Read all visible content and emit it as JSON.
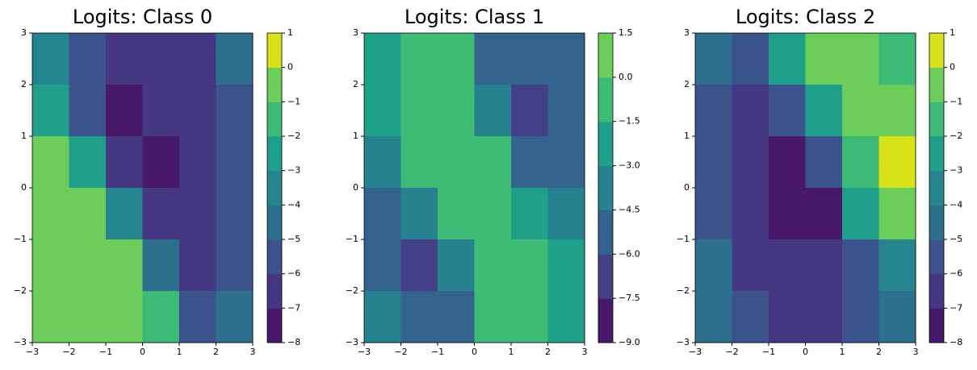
{
  "chart_data": [
    {
      "type": "contour",
      "title": "Logits: Class 0",
      "x": [
        -2.5,
        -1.5,
        -0.5,
        0.5,
        1.5,
        2.5
      ],
      "y": [
        2.5,
        1.5,
        0.5,
        -0.5,
        -1.5,
        -2.5
      ],
      "z": [
        [
          -4,
          -6,
          -6.5,
          -6.5,
          -6.5,
          -5
        ],
        [
          -3,
          -6,
          -7.5,
          -6.5,
          -6.5,
          -5.5
        ],
        [
          -0.5,
          -3,
          -6.5,
          -7.2,
          -6.5,
          -6
        ],
        [
          -0.5,
          -1,
          -4,
          -7,
          -6.5,
          -6
        ],
        [
          -1,
          -0.5,
          -1,
          -5,
          -6.5,
          -5.5
        ],
        [
          -1,
          -0.8,
          -0.5,
          -2,
          -5.5,
          -5
        ]
      ],
      "xlim": [
        -3,
        3
      ],
      "ylim": [
        -3,
        3
      ],
      "xticks": [
        {
          "value": -3,
          "label": "−3"
        },
        {
          "value": -2,
          "label": "−2"
        },
        {
          "value": -1,
          "label": "−1"
        },
        0,
        1,
        2,
        3
      ],
      "yticks": [
        {
          "value": -3,
          "label": "−3"
        },
        {
          "value": -2,
          "label": "−2"
        },
        {
          "value": -1,
          "label": "−1"
        },
        0,
        1,
        2,
        3
      ],
      "cticks": [
        {
          "value": -8,
          "label": "−8"
        },
        {
          "value": -7,
          "label": "−7"
        },
        {
          "value": -6,
          "label": "−6"
        },
        {
          "value": -5,
          "label": "−5"
        },
        {
          "value": -4,
          "label": "−4"
        },
        {
          "value": -3,
          "label": "−3"
        },
        {
          "value": -2,
          "label": "−2"
        },
        {
          "value": -1,
          "label": "−1"
        },
        0,
        1
      ],
      "colors": [
        "#48186a",
        "#453781",
        "#3b528b",
        "#2d708e",
        "#25858e",
        "#1f9e89",
        "#3bbb75",
        "#6ccd5a",
        "#d8e219"
      ]
    },
    {
      "type": "contour",
      "title": "Logits: Class 1",
      "x": [
        -2.5,
        -1.5,
        -0.5,
        0.5,
        1.5,
        2.5
      ],
      "y": [
        2.5,
        1.5,
        0.5,
        -0.5,
        -1.5,
        -2.5
      ],
      "z": [
        [
          -3,
          -1,
          -1.5,
          -5,
          -6,
          -5.5
        ],
        [
          -2.5,
          -0.5,
          -1,
          -4.5,
          -6.5,
          -5
        ],
        [
          -4,
          -1.5,
          -0.5,
          -1.5,
          -6,
          -5
        ],
        [
          -6,
          -4.5,
          -1,
          -0.5,
          -3,
          -4
        ],
        [
          -5,
          -6.5,
          -3.5,
          -1,
          -0.7,
          -2
        ],
        [
          -3.5,
          -5,
          -5.5,
          -1.5,
          -0.8,
          -2
        ]
      ],
      "xlim": [
        -3,
        3
      ],
      "ylim": [
        -3,
        3
      ],
      "xticks": [
        {
          "value": -3,
          "label": "−3"
        },
        {
          "value": -2,
          "label": "−2"
        },
        {
          "value": -1,
          "label": "−1"
        },
        0,
        1,
        2,
        3
      ],
      "yticks": [
        {
          "value": -3,
          "label": "−3"
        },
        {
          "value": -2,
          "label": "−2"
        },
        {
          "value": -1,
          "label": "−1"
        },
        0,
        1,
        2,
        3
      ],
      "cticks": [
        {
          "value": -9,
          "label": "−9.0"
        },
        {
          "value": -7.5,
          "label": "−7.5"
        },
        {
          "value": -6,
          "label": "−6.0"
        },
        {
          "value": -4.5,
          "label": "−4.5"
        },
        {
          "value": -3,
          "label": "−3.0"
        },
        {
          "value": -1.5,
          "label": "−1.5"
        },
        {
          "value": 0,
          "label": "0.0"
        },
        1.5
      ],
      "colors": [
        "#48186a",
        "#424086",
        "#33638d",
        "#26828e",
        "#1fa088",
        "#3fbc73",
        "#6ccd5a",
        "#d8e219"
      ]
    },
    {
      "type": "contour",
      "title": "Logits: Class 2",
      "x": [
        -2.5,
        -1.5,
        -0.5,
        0.5,
        1.5,
        2.5
      ],
      "y": [
        2.5,
        1.5,
        0.5,
        -0.5,
        -1.5,
        -2.5
      ],
      "z": [
        [
          -5,
          -6,
          -3,
          -1,
          -0.5,
          -2
        ],
        [
          -6,
          -6.5,
          -6,
          -3,
          -0.8,
          -1
        ],
        [
          -6,
          -7,
          -7.3,
          -6,
          -2,
          0.2
        ],
        [
          -6,
          -6.5,
          -7.5,
          -7.3,
          -3,
          -1
        ],
        [
          -5,
          -6.5,
          -6.5,
          -6.5,
          -5.5,
          -4
        ],
        [
          -5,
          -5.5,
          -6.5,
          -6.5,
          -5.5,
          -5
        ]
      ],
      "xlim": [
        -3,
        3
      ],
      "ylim": [
        -3,
        3
      ],
      "xticks": [
        {
          "value": -3,
          "label": "−3"
        },
        {
          "value": -2,
          "label": "−2"
        },
        {
          "value": -1,
          "label": "−1"
        },
        0,
        1,
        2,
        3
      ],
      "yticks": [
        {
          "value": -3,
          "label": "−3"
        },
        {
          "value": -2,
          "label": "−2"
        },
        {
          "value": -1,
          "label": "−1"
        },
        0,
        1,
        2,
        3
      ],
      "cticks": [
        {
          "value": -8,
          "label": "−8"
        },
        {
          "value": -7,
          "label": "−7"
        },
        {
          "value": -6,
          "label": "−6"
        },
        {
          "value": -5,
          "label": "−5"
        },
        {
          "value": -4,
          "label": "−4"
        },
        {
          "value": -3,
          "label": "−3"
        },
        {
          "value": -2,
          "label": "−2"
        },
        {
          "value": -1,
          "label": "−1"
        },
        0,
        1
      ],
      "colors": [
        "#48186a",
        "#453781",
        "#3b528b",
        "#2d708e",
        "#25858e",
        "#1f9e89",
        "#3bbb75",
        "#6ccd5a",
        "#d8e219"
      ]
    }
  ]
}
